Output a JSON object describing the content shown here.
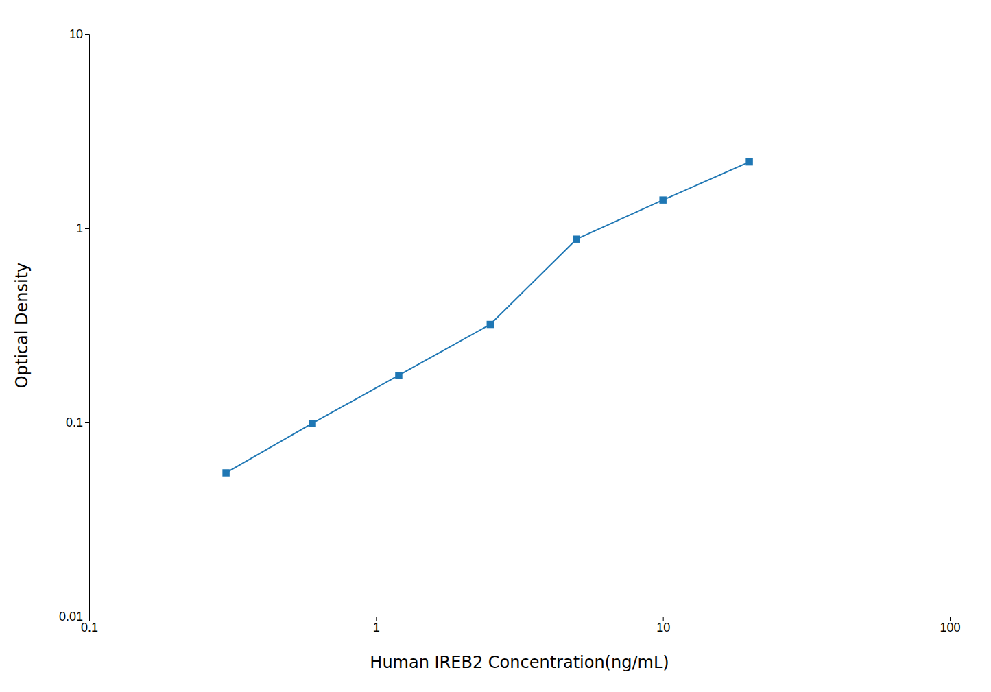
{
  "chart_data": {
    "type": "line",
    "x": [
      0.3,
      0.6,
      1.2,
      2.5,
      5.0,
      10.0,
      20.0
    ],
    "values": [
      0.055,
      0.099,
      0.175,
      0.32,
      0.88,
      1.4,
      2.2
    ],
    "xlabel": "Human IREB2 Concentration(ng/mL)",
    "ylabel": "Optical Density",
    "xlim": [
      0.1,
      100
    ],
    "ylim": [
      0.01,
      10
    ],
    "xticks": [
      0.1,
      1,
      10,
      100
    ],
    "yticks": [
      0.01,
      0.1,
      1,
      10
    ],
    "log": true,
    "grid": false,
    "marker": "square"
  }
}
